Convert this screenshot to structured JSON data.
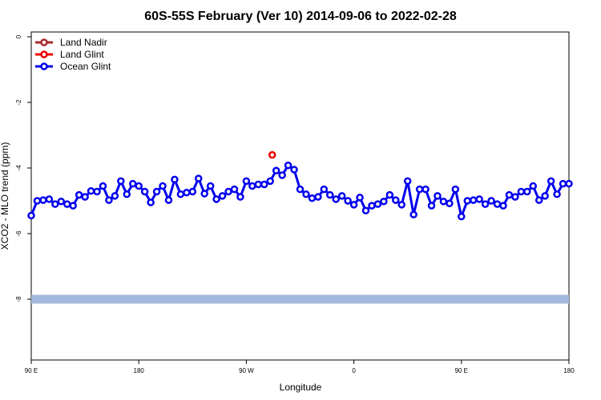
{
  "chart_data": {
    "type": "line",
    "title": "60S-55S February (Ver 10)   2014-09-06 to 2022-02-28",
    "xlabel": "Longitude",
    "ylabel": "XCO2 - MLO trend (ppm)",
    "xlim": [
      -90,
      180
    ],
    "ylim": [
      -9,
      0
    ],
    "x_ticks": [
      {
        "value": -90,
        "label": "90 E"
      },
      {
        "value": -36,
        "label": "180"
      },
      {
        "value": 18,
        "label": "90 W"
      },
      {
        "value": 72,
        "label": "0"
      },
      {
        "value": 126,
        "label": "90 E"
      },
      {
        "value": 180,
        "label": "180"
      }
    ],
    "y_ticks": [
      {
        "value": 0,
        "label": "0"
      },
      {
        "value": -2,
        "label": "-2"
      },
      {
        "value": -4,
        "label": "-4"
      },
      {
        "value": -6,
        "label": "-6"
      },
      {
        "value": -8,
        "label": "-8"
      }
    ],
    "legend": {
      "position": "top-left",
      "entries": [
        {
          "name": "Land Nadir",
          "color": "#a52a2a"
        },
        {
          "name": "Land Glint",
          "color": "#ee0000"
        },
        {
          "name": "Ocean Glint",
          "color": "#0000ee"
        }
      ]
    },
    "band": {
      "y": -8.0,
      "color": "#a2b8dc"
    },
    "series": [
      {
        "name": "Land Glint",
        "color": "#ee0000",
        "x": [
          31
        ],
        "y": [
          -3.6
        ]
      },
      {
        "name": "Ocean Glint",
        "color": "#0000ee",
        "x": [
          -90,
          -87,
          -84,
          -81,
          -78,
          -75,
          -72,
          -69,
          -66,
          -63,
          -60,
          -57,
          -54,
          -51,
          -48,
          -45,
          -42,
          -39,
          -36,
          -33,
          -30,
          -27,
          -24,
          -21,
          -18,
          -15,
          -12,
          -9,
          -6,
          -3,
          0,
          3,
          6,
          9,
          12,
          15,
          18,
          21,
          24,
          27,
          30,
          33,
          36,
          39,
          42,
          45,
          48,
          51,
          54,
          57,
          60,
          63,
          66,
          69,
          72,
          75,
          78,
          81,
          84,
          87,
          90,
          93,
          96,
          99,
          102,
          105,
          108,
          111,
          114,
          117,
          120,
          123,
          126,
          129,
          132,
          135,
          138,
          141,
          144,
          147,
          150,
          153,
          156,
          159,
          162,
          165,
          168,
          171,
          174,
          177,
          180
        ],
        "y": [
          -5.45,
          -5.0,
          -4.98,
          -4.95,
          -5.1,
          -5.02,
          -5.1,
          -5.15,
          -4.82,
          -4.88,
          -4.7,
          -4.72,
          -4.55,
          -4.98,
          -4.85,
          -4.4,
          -4.8,
          -4.48,
          -4.55,
          -4.72,
          -5.05,
          -4.72,
          -4.55,
          -4.98,
          -4.35,
          -4.8,
          -4.75,
          -4.72,
          -4.32,
          -4.78,
          -4.55,
          -4.95,
          -4.85,
          -4.72,
          -4.65,
          -4.88,
          -4.4,
          -4.55,
          -4.5,
          -4.5,
          -4.4,
          -4.08,
          -4.22,
          -3.92,
          -4.05,
          -4.65,
          -4.8,
          -4.92,
          -4.88,
          -4.65,
          -4.82,
          -4.95,
          -4.85,
          -5.0,
          -5.12,
          -4.9,
          -5.3,
          -5.15,
          -5.1,
          -5.02,
          -4.82,
          -4.98,
          -5.12,
          -4.4,
          -5.42,
          -4.65,
          -4.65,
          -5.15,
          -4.85,
          -5.02,
          -5.08,
          -4.65,
          -5.48,
          -5.0,
          -4.98,
          -4.95,
          -5.1,
          -5.0,
          -5.1,
          -5.15,
          -4.82,
          -4.88,
          -4.72,
          -4.72,
          -4.55,
          -4.98,
          -4.85,
          -4.4,
          -4.8,
          -4.48,
          -4.48
        ]
      }
    ]
  }
}
